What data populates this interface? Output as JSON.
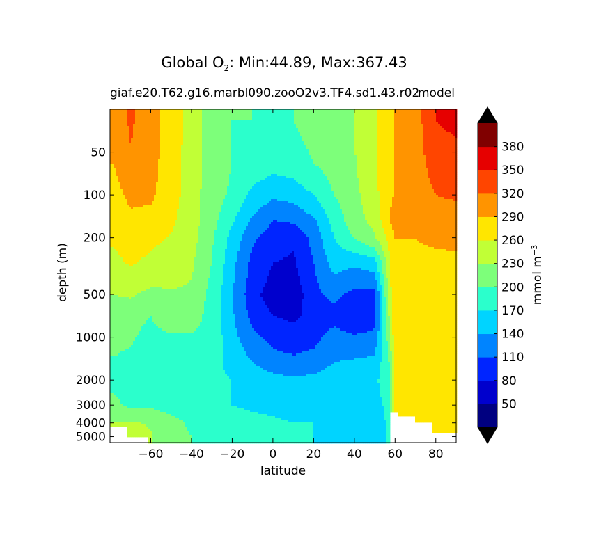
{
  "title": {
    "prefix": "Global O",
    "subscript": "2",
    "suffix": ": Min:44.89, Max:367.43"
  },
  "subtitle": "giaf.e20.T62.g16.marbl090.zooO2v3.TF4.sd1.43.r02",
  "subtitle_right": "model",
  "chart_data": {
    "type": "contourf",
    "xlabel": "latitude",
    "ylabel": "depth (m)",
    "xlim": [
      -80,
      90
    ],
    "ylim": [
      5500,
      25
    ],
    "x_ticks": [
      -60,
      -40,
      -20,
      0,
      20,
      40,
      60,
      80
    ],
    "x_tick_labels": [
      "−60",
      "−40",
      "−20",
      "0",
      "20",
      "40",
      "60",
      "80"
    ],
    "y_ticks": [
      50,
      100,
      200,
      500,
      1000,
      2000,
      3000,
      4000,
      5000
    ],
    "y_tick_labels": [
      "50",
      "100",
      "200",
      "500",
      "1000",
      "2000",
      "3000",
      "4000",
      "5000"
    ],
    "stats": {
      "min": 44.89,
      "max": 367.43
    },
    "colorbar": {
      "label": "mmol m",
      "label_superscript": "−3",
      "levels": [
        20,
        50,
        80,
        110,
        140,
        170,
        200,
        230,
        260,
        290,
        320,
        350,
        380,
        410
      ],
      "tick_values": [
        50,
        80,
        110,
        140,
        170,
        200,
        230,
        260,
        290,
        320,
        350,
        380
      ],
      "colors": [
        "#000080",
        "#0000cd",
        "#0025ff",
        "#0084ff",
        "#00d4ff",
        "#2bffcc",
        "#7dff7a",
        "#c1ff36",
        "#ffe600",
        "#ff9400",
        "#ff4500",
        "#e60000",
        "#800000"
      ],
      "extend_color": "#000000"
    },
    "sample_grid": {
      "lat": [
        -78,
        -70,
        -60,
        -50,
        -40,
        -30,
        -20,
        -10,
        0,
        10,
        20,
        30,
        40,
        50,
        57,
        60,
        70,
        80,
        90
      ],
      "depth": [
        30,
        60,
        100,
        150,
        200,
        300,
        500,
        700,
        1000,
        1500,
        2000,
        3000,
        4000,
        5000,
        5400
      ],
      "values": [
        [
          300,
          325,
          300,
          280,
          245,
          215,
          200,
          200,
          195,
          200,
          210,
          215,
          230,
          255,
          285,
          292,
          305,
          350,
          355
        ],
        [
          290,
          315,
          300,
          275,
          245,
          215,
          200,
          190,
          180,
          185,
          200,
          210,
          228,
          255,
          285,
          292,
          305,
          335,
          340
        ],
        [
          275,
          300,
          295,
          272,
          245,
          212,
          195,
          160,
          145,
          150,
          170,
          200,
          222,
          250,
          285,
          292,
          300,
          320,
          325
        ],
        [
          268,
          280,
          280,
          265,
          243,
          210,
          175,
          135,
          110,
          115,
          135,
          180,
          218,
          240,
          290,
          300,
          296,
          300,
          300
        ],
        [
          262,
          272,
          265,
          258,
          240,
          205,
          160,
          115,
          95,
          85,
          120,
          170,
          200,
          225,
          270,
          290,
          290,
          292,
          292
        ],
        [
          255,
          262,
          255,
          248,
          234,
          200,
          150,
          100,
          80,
          75,
          110,
          150,
          145,
          155,
          250,
          290,
          287,
          287,
          288
        ],
        [
          230,
          235,
          220,
          225,
          225,
          190,
          142,
          90,
          65,
          60,
          100,
          120,
          100,
          95,
          245,
          285,
          283,
          283,
          284
        ],
        [
          212,
          205,
          200,
          215,
          215,
          188,
          145,
          100,
          80,
          75,
          88,
          95,
          85,
          95,
          230,
          285,
          280,
          280,
          280
        ],
        [
          205,
          202,
          195,
          195,
          195,
          190,
          150,
          120,
          100,
          90,
          100,
          125,
          115,
          120,
          215,
          280,
          282,
          282,
          282
        ],
        [
          198,
          196,
          192,
          190,
          185,
          180,
          160,
          140,
          125,
          120,
          125,
          140,
          145,
          150,
          200,
          270,
          282,
          284,
          285
        ],
        [
          195,
          192,
          190,
          188,
          185,
          178,
          170,
          160,
          150,
          145,
          148,
          155,
          160,
          162,
          195,
          265,
          282,
          284,
          285
        ],
        [
          205,
          195,
          195,
          188,
          180,
          175,
          170,
          167,
          165,
          162,
          162,
          162,
          162,
          158,
          180,
          275,
          284,
          286,
          287
        ],
        [
          230,
          232,
          228,
          210,
          195,
          185,
          180,
          176,
          173,
          170,
          170,
          167,
          162,
          155,
          175,
          280,
          286,
          288,
          288
        ],
        [
          238,
          238,
          232,
          212,
          200,
          192,
          185,
          180,
          176,
          173,
          170,
          165,
          158,
          150,
          178,
          280,
          286,
          288,
          288
        ],
        [
          238,
          238,
          232,
          212,
          200,
          192,
          185,
          180,
          176,
          173,
          170,
          165,
          158,
          150,
          178,
          280,
          286,
          288,
          288
        ]
      ]
    }
  }
}
